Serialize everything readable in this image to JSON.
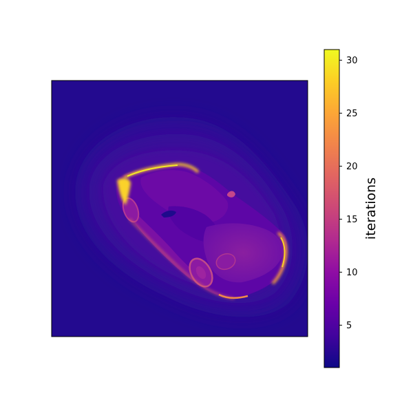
{
  "chart_data": {
    "type": "heatmap",
    "title": "",
    "xlabel": "",
    "ylabel": "",
    "xticks": [],
    "yticks": [],
    "colormap": "plasma",
    "colorbar": {
      "label": "iterations",
      "vmin": 1,
      "vmax": 31,
      "ticks": [
        5,
        10,
        15,
        20,
        25,
        30
      ],
      "tick_labels": [
        "5",
        "10",
        "15",
        "20",
        "25",
        "30"
      ]
    },
    "background_value": 1,
    "subject": "car",
    "min_value": 1,
    "max_value": 31
  },
  "colors": {
    "plasma_stops": [
      "#0d0887",
      "#41049d",
      "#6a00a8",
      "#8f0da4",
      "#b12a90",
      "#cc4778",
      "#e16462",
      "#f2844b",
      "#fca636",
      "#fcce25",
      "#f0f921"
    ],
    "axes_edge": "#000000"
  }
}
